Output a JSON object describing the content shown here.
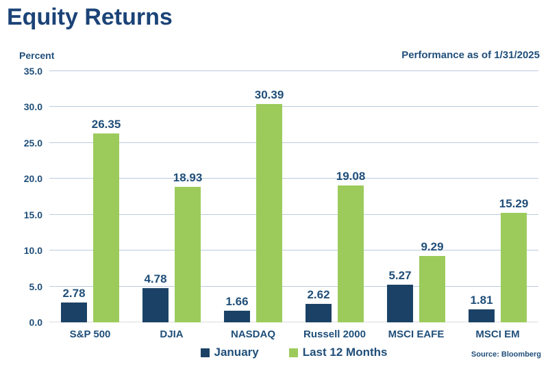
{
  "page": {
    "title": "Equity Returns"
  },
  "chart_data": {
    "type": "bar",
    "title": "Equity Returns",
    "unit_label": "Percent",
    "as_of_label": "Performance as of 1/31/2025",
    "source": "Source: Bloomberg",
    "categories": [
      "S&P 500",
      "DJIA",
      "NASDAQ",
      "Russell 2000",
      "MSCI EAFE",
      "MSCI EM"
    ],
    "series": [
      {
        "name": "January",
        "color": "#1B4266",
        "values": [
          2.78,
          4.78,
          1.66,
          2.62,
          5.27,
          1.81
        ]
      },
      {
        "name": "Last 12 Months",
        "color": "#9CCB5C",
        "values": [
          26.35,
          18.93,
          30.39,
          19.08,
          9.29,
          15.29
        ]
      }
    ],
    "xlabel": "",
    "ylabel": "Percent",
    "ylim": [
      0,
      35
    ],
    "ytick_step": 5,
    "ytick_labels": [
      "0.0",
      "5.0",
      "10.0",
      "15.0",
      "20.0",
      "25.0",
      "30.0",
      "35.0"
    ],
    "grid": true,
    "legend_position": "bottom",
    "colors": {
      "title_text": "#1B4377",
      "chart_text": "#1F4E79",
      "gridline": "#B9CBDC",
      "baseline": "#DCDCDC",
      "january_bar": "#1B4266",
      "last_12_months_bar": "#9CCB5C"
    }
  }
}
